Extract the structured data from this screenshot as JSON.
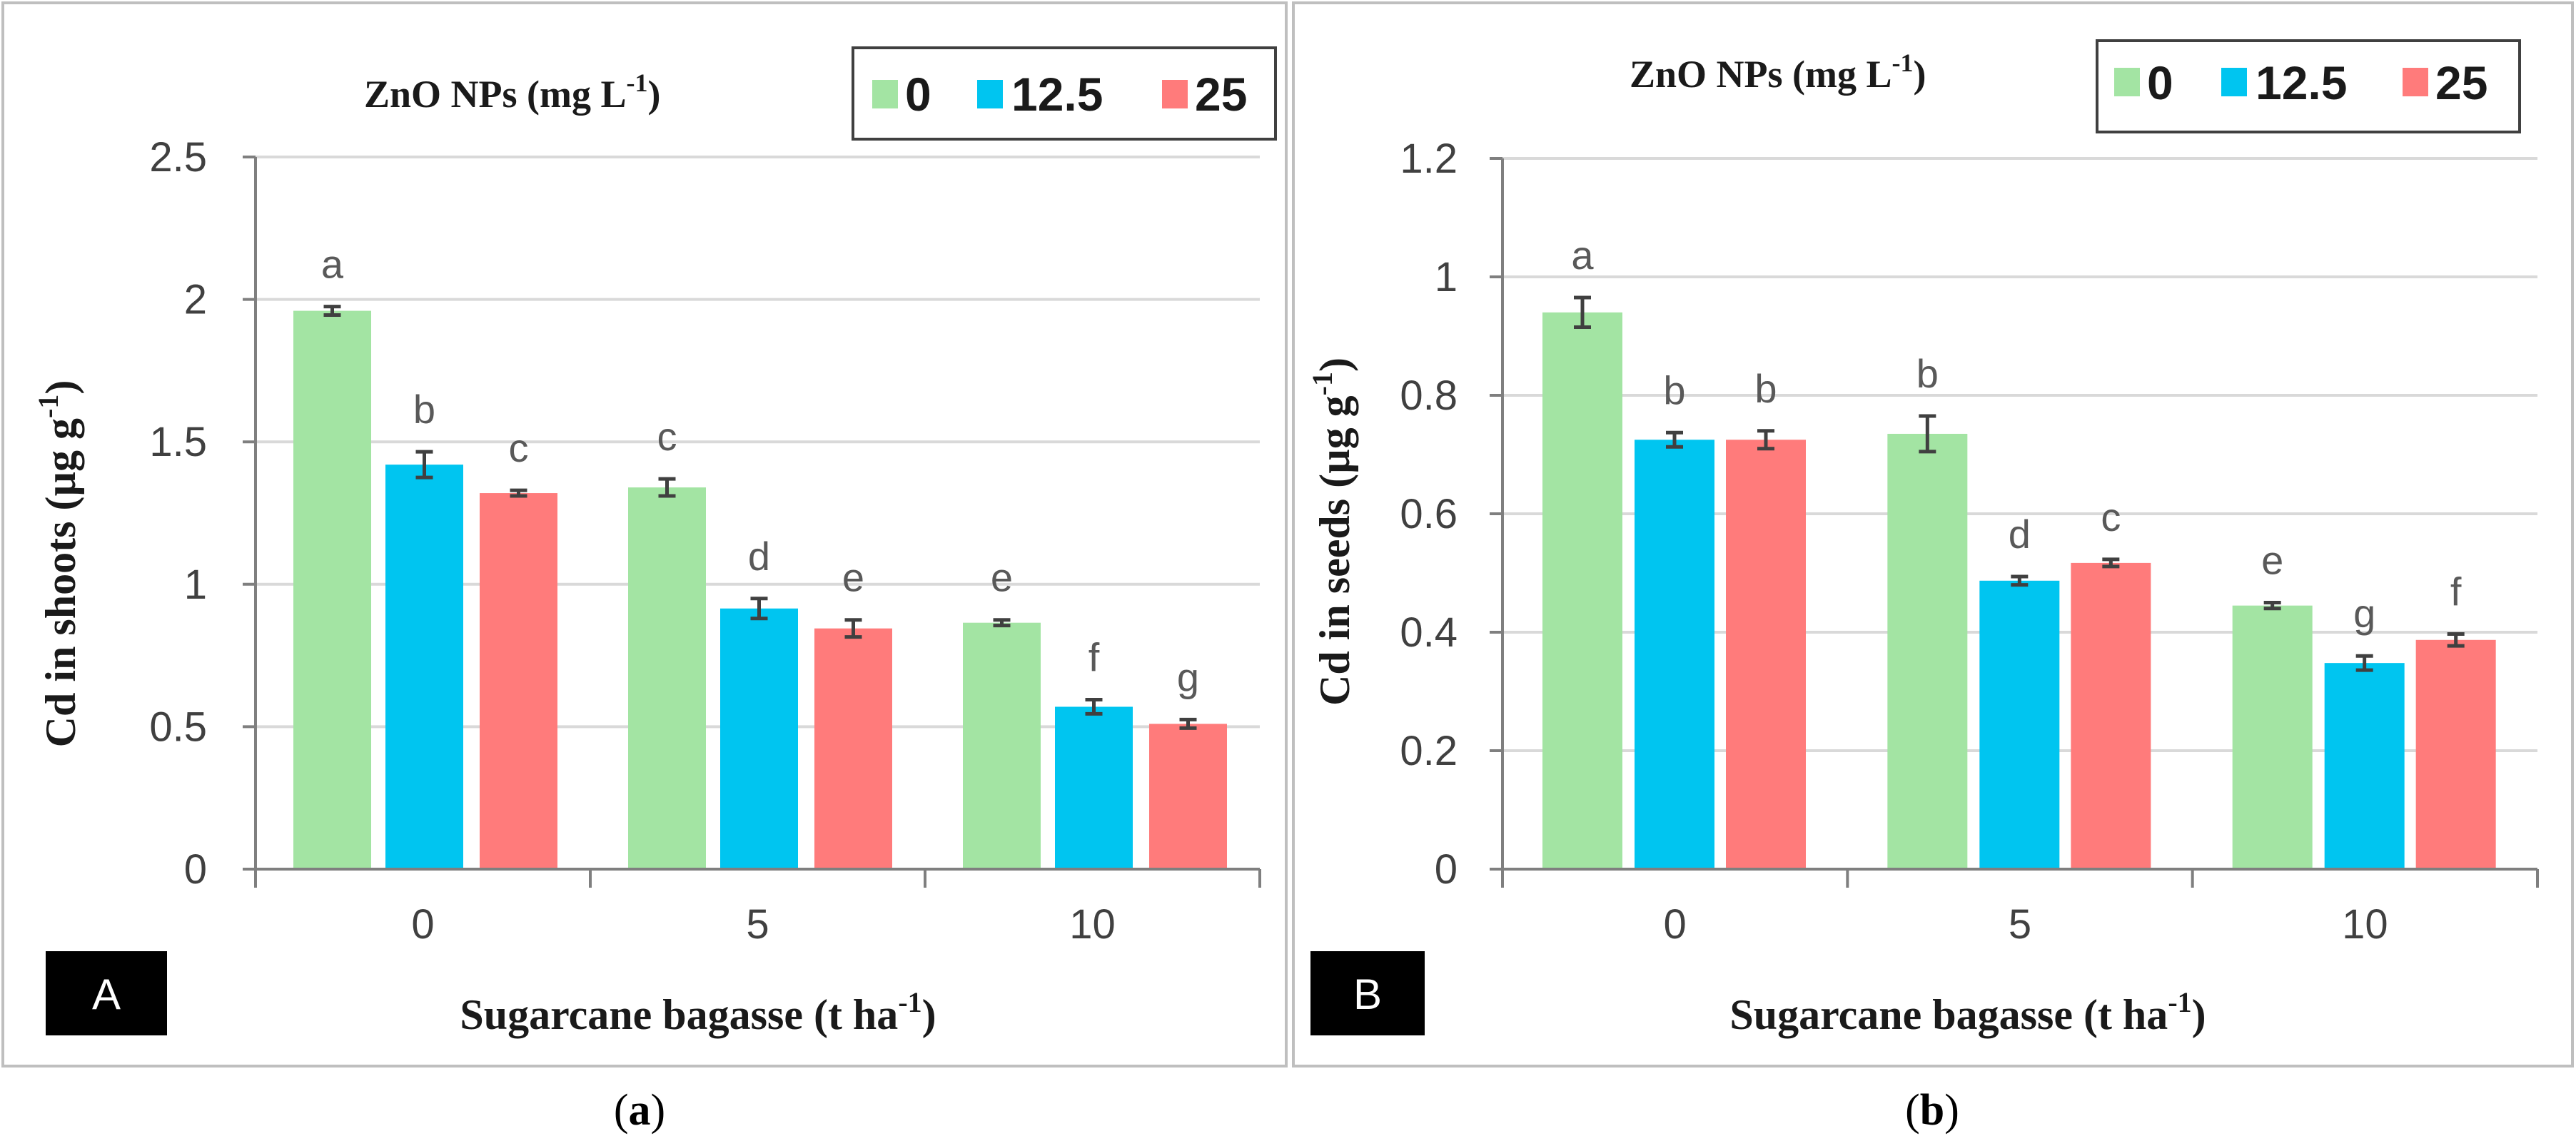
{
  "colors": {
    "series_0": "#a3e4a3",
    "series_12_5": "#00c5f0",
    "series_25": "#ff7b7b"
  },
  "legend": {
    "title": "ZnO NPs (mg L",
    "title_sup": "-1",
    "title_close": ")",
    "entries": [
      "0",
      "12.5",
      "25"
    ]
  },
  "x_axis": {
    "title": "Sugarcane bagasse (t ha",
    "title_sup": "-1",
    "title_close": ")"
  },
  "chart_data": [
    {
      "type": "bar",
      "panel_label": "A",
      "caption_open": "(",
      "caption_letter": "a",
      "caption_close": ")",
      "ylabel": "Cd in shoots (µg g",
      "ylabel_sup": "-1",
      "ylabel_close": ")",
      "xlabel": "Sugarcane bagasse (t ha-1)",
      "ylim": [
        0,
        2.5
      ],
      "yticks": [
        0,
        0.5,
        1,
        1.5,
        2,
        2.5
      ],
      "ytick_labels": [
        "0",
        "0.5",
        "1",
        "1.5",
        "2",
        "2.5"
      ],
      "categories": [
        "0",
        "5",
        "10"
      ],
      "series": [
        {
          "name": "0",
          "values": [
            1.96,
            1.34,
            0.865
          ],
          "errors": [
            0.015,
            0.03,
            0.01
          ],
          "letters": [
            "a",
            "c",
            "e"
          ]
        },
        {
          "name": "12.5",
          "values": [
            1.42,
            0.915,
            0.57
          ],
          "errors": [
            0.045,
            0.035,
            0.025
          ],
          "letters": [
            "b",
            "d",
            "f"
          ]
        },
        {
          "name": "25",
          "values": [
            1.32,
            0.845,
            0.51
          ],
          "errors": [
            0.01,
            0.03,
            0.015
          ],
          "letters": [
            "c",
            "e",
            "g"
          ]
        }
      ]
    },
    {
      "type": "bar",
      "panel_label": "B",
      "caption_open": "(",
      "caption_letter": "b",
      "caption_close": ")",
      "ylabel": "Cd in seeds (µg g",
      "ylabel_sup": "-1",
      "ylabel_close": ")",
      "xlabel": "Sugarcane bagasse (t ha-1)",
      "ylim": [
        0,
        1.2
      ],
      "yticks": [
        0,
        0.2,
        0.4,
        0.6,
        0.8,
        1,
        1.2
      ],
      "ytick_labels": [
        "0",
        "0.2",
        "0.4",
        "0.6",
        "0.8",
        "1",
        "1.2"
      ],
      "categories": [
        "0",
        "5",
        "10"
      ],
      "series": [
        {
          "name": "0",
          "values": [
            0.94,
            0.735,
            0.445
          ],
          "errors": [
            0.025,
            0.03,
            0.005
          ],
          "letters": [
            "a",
            "b",
            "e"
          ]
        },
        {
          "name": "12.5",
          "values": [
            0.725,
            0.487,
            0.348
          ],
          "errors": [
            0.012,
            0.007,
            0.012
          ],
          "letters": [
            "b",
            "d",
            "g"
          ]
        },
        {
          "name": "25",
          "values": [
            0.725,
            0.517,
            0.387
          ],
          "errors": [
            0.015,
            0.006,
            0.01
          ],
          "letters": [
            "b",
            "c",
            "f"
          ]
        }
      ]
    }
  ]
}
